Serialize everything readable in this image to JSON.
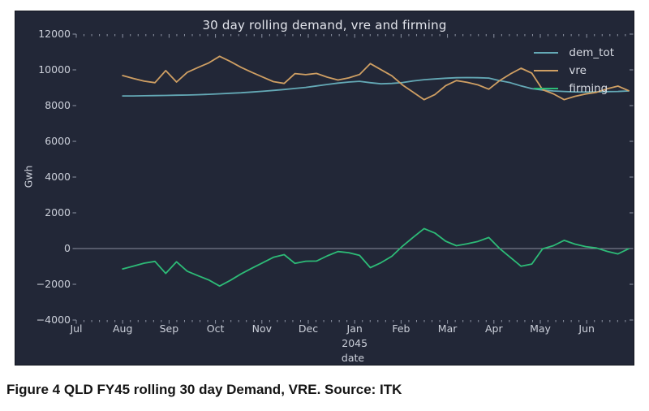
{
  "figure": {
    "caption": "Figure 4 QLD FY45 rolling 30 day Demand, VRE. Source: ITK"
  },
  "chart_data": {
    "type": "line",
    "title": "30 day rolling demand, vre and firming",
    "xlabel": "date",
    "ylabel": "Gwh",
    "x_year_label": "2045",
    "x_tick_labels": [
      "Jul",
      "Aug",
      "Sep",
      "Oct",
      "Nov",
      "Dec",
      "Jan",
      "Feb",
      "Mar",
      "Apr",
      "May",
      "Jun"
    ],
    "y_ticks": [
      12000,
      10000,
      8000,
      6000,
      4000,
      2000,
      0,
      -2000,
      -4000
    ],
    "ylim": [
      -4000,
      12000
    ],
    "x_range_note": "weekly samples, Aug 2044 through end of Jun 2045 (FY45)",
    "grid": false,
    "zero_line": true,
    "legend_position": "upper right",
    "colors": {
      "background": "#222737",
      "border": "#14161f",
      "text": "#ccd0da",
      "title": "#e3e5ec",
      "tick": "#9aa0b0",
      "zero_line": "#9b9fae"
    },
    "series": [
      {
        "name": "dem_tot",
        "color": "#64a9b6",
        "values": [
          8540,
          8540,
          8550,
          8560,
          8570,
          8580,
          8590,
          8610,
          8630,
          8660,
          8690,
          8720,
          8760,
          8800,
          8850,
          8900,
          8960,
          9020,
          9100,
          9180,
          9260,
          9320,
          9360,
          9280,
          9220,
          9240,
          9290,
          9380,
          9450,
          9490,
          9530,
          9560,
          9570,
          9560,
          9540,
          9400,
          9280,
          9100,
          8950,
          8870,
          8820,
          8790,
          8770,
          8760,
          8770,
          8780,
          8790,
          8820
        ]
      },
      {
        "name": "vre",
        "color": "#cf9f63",
        "values": [
          9680,
          9520,
          9370,
          9280,
          9960,
          9320,
          9860,
          10130,
          10390,
          10760,
          10470,
          10140,
          9860,
          9600,
          9340,
          9240,
          9790,
          9730,
          9800,
          9590,
          9430,
          9550,
          9740,
          10350,
          10010,
          9670,
          9150,
          8740,
          8330,
          8620,
          9120,
          9400,
          9300,
          9160,
          8920,
          9390,
          9770,
          10090,
          9820,
          8890,
          8660,
          8330,
          8520,
          8650,
          8740,
          8940,
          9090,
          8830
        ]
      },
      {
        "name": "firming",
        "color": "#2dbb77",
        "values": [
          -1140,
          -980,
          -820,
          -720,
          -1390,
          -740,
          -1270,
          -1520,
          -1760,
          -2100,
          -1780,
          -1420,
          -1100,
          -800,
          -490,
          -340,
          -830,
          -710,
          -700,
          -410,
          -170,
          -230,
          -380,
          -1070,
          -790,
          -430,
          140,
          640,
          1120,
          870,
          410,
          160,
          270,
          400,
          620,
          10,
          -490,
          -990,
          -870,
          -20,
          160,
          460,
          250,
          110,
          30,
          -160,
          -300,
          -10
        ]
      }
    ]
  }
}
